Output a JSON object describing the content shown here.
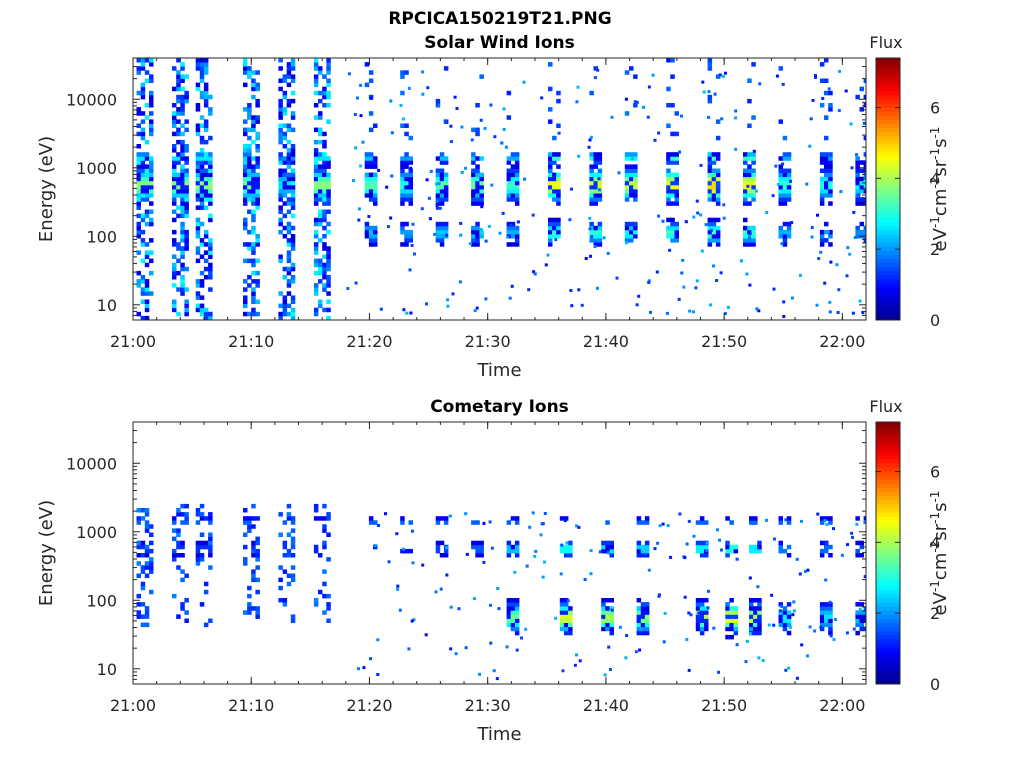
{
  "figure_title": "RPCICA150219T21.PNG",
  "colormap": [
    "#00008f",
    "#0000ff",
    "#0080ff",
    "#00ffff",
    "#80ff80",
    "#ffff00",
    "#ff8000",
    "#ff0000",
    "#800000"
  ],
  "chart_data": [
    {
      "type": "heatmap",
      "title": "Solar Wind Ions",
      "xlabel": "Time",
      "ylabel": "Energy (eV)",
      "y_scale": "log",
      "xlim": [
        "21:00",
        "22:02"
      ],
      "ylim": [
        6,
        40000
      ],
      "x_ticks": [
        "21:00",
        "21:10",
        "21:20",
        "21:30",
        "21:40",
        "21:50",
        "22:00"
      ],
      "y_ticks": [
        10,
        100,
        1000,
        10000
      ],
      "y_tick_labels": [
        "10",
        "100",
        "1000",
        "10000"
      ],
      "colorbar": {
        "title": "Flux",
        "label": "eV-1cm-2sr-1s-1",
        "label_parts": [
          "eV",
          "-1",
          "cm",
          "-2",
          "sr",
          "-1",
          "s",
          "-1"
        ],
        "range": [
          0,
          7.4
        ],
        "ticks": [
          0,
          2,
          4,
          6
        ]
      },
      "pulse_times_min": [
        1,
        4,
        6,
        10,
        13,
        16,
        20,
        23,
        26,
        29,
        32,
        35.5,
        39,
        42,
        45.5,
        49,
        52,
        55,
        58.5,
        61.5
      ],
      "pulse_peak_flux": [
        3.8,
        3.8,
        3.8,
        3.6,
        2.6,
        3.8,
        3.4,
        3.0,
        3.4,
        3.6,
        3.2,
        4.6,
        4.4,
        4.2,
        4.6,
        5.0,
        4.6,
        3.2,
        3.0,
        2.8
      ]
    },
    {
      "type": "heatmap",
      "title": "Cometary Ions",
      "xlabel": "Time",
      "ylabel": "Energy (eV)",
      "y_scale": "log",
      "xlim": [
        "21:00",
        "22:02"
      ],
      "ylim": [
        6,
        40000
      ],
      "x_ticks": [
        "21:00",
        "21:10",
        "21:20",
        "21:30",
        "21:40",
        "21:50",
        "22:00"
      ],
      "y_ticks": [
        10,
        100,
        1000,
        10000
      ],
      "y_tick_labels": [
        "10",
        "100",
        "1000",
        "10000"
      ],
      "colorbar": {
        "title": "Flux",
        "label": "eV-1cm-2sr-1s-1",
        "label_parts": [
          "eV",
          "-1",
          "cm",
          "-2",
          "sr",
          "-1",
          "s",
          "-1"
        ],
        "range": [
          0,
          7.4
        ],
        "ticks": [
          0,
          2,
          4,
          6
        ]
      },
      "pulse_times_min": [
        1,
        4,
        6,
        10,
        13,
        16,
        20,
        23,
        26,
        29,
        32,
        36.5,
        40,
        43,
        48,
        50.5,
        52.5,
        55,
        58.5,
        61.5
      ],
      "pulse_peak_flux": [
        2.0,
        2.0,
        2.0,
        2.0,
        1.6,
        1.8,
        1.8,
        1.6,
        2.2,
        2.4,
        3.6,
        4.4,
        4.0,
        3.8,
        4.2,
        4.6,
        4.2,
        2.8,
        2.6,
        2.4
      ]
    }
  ]
}
